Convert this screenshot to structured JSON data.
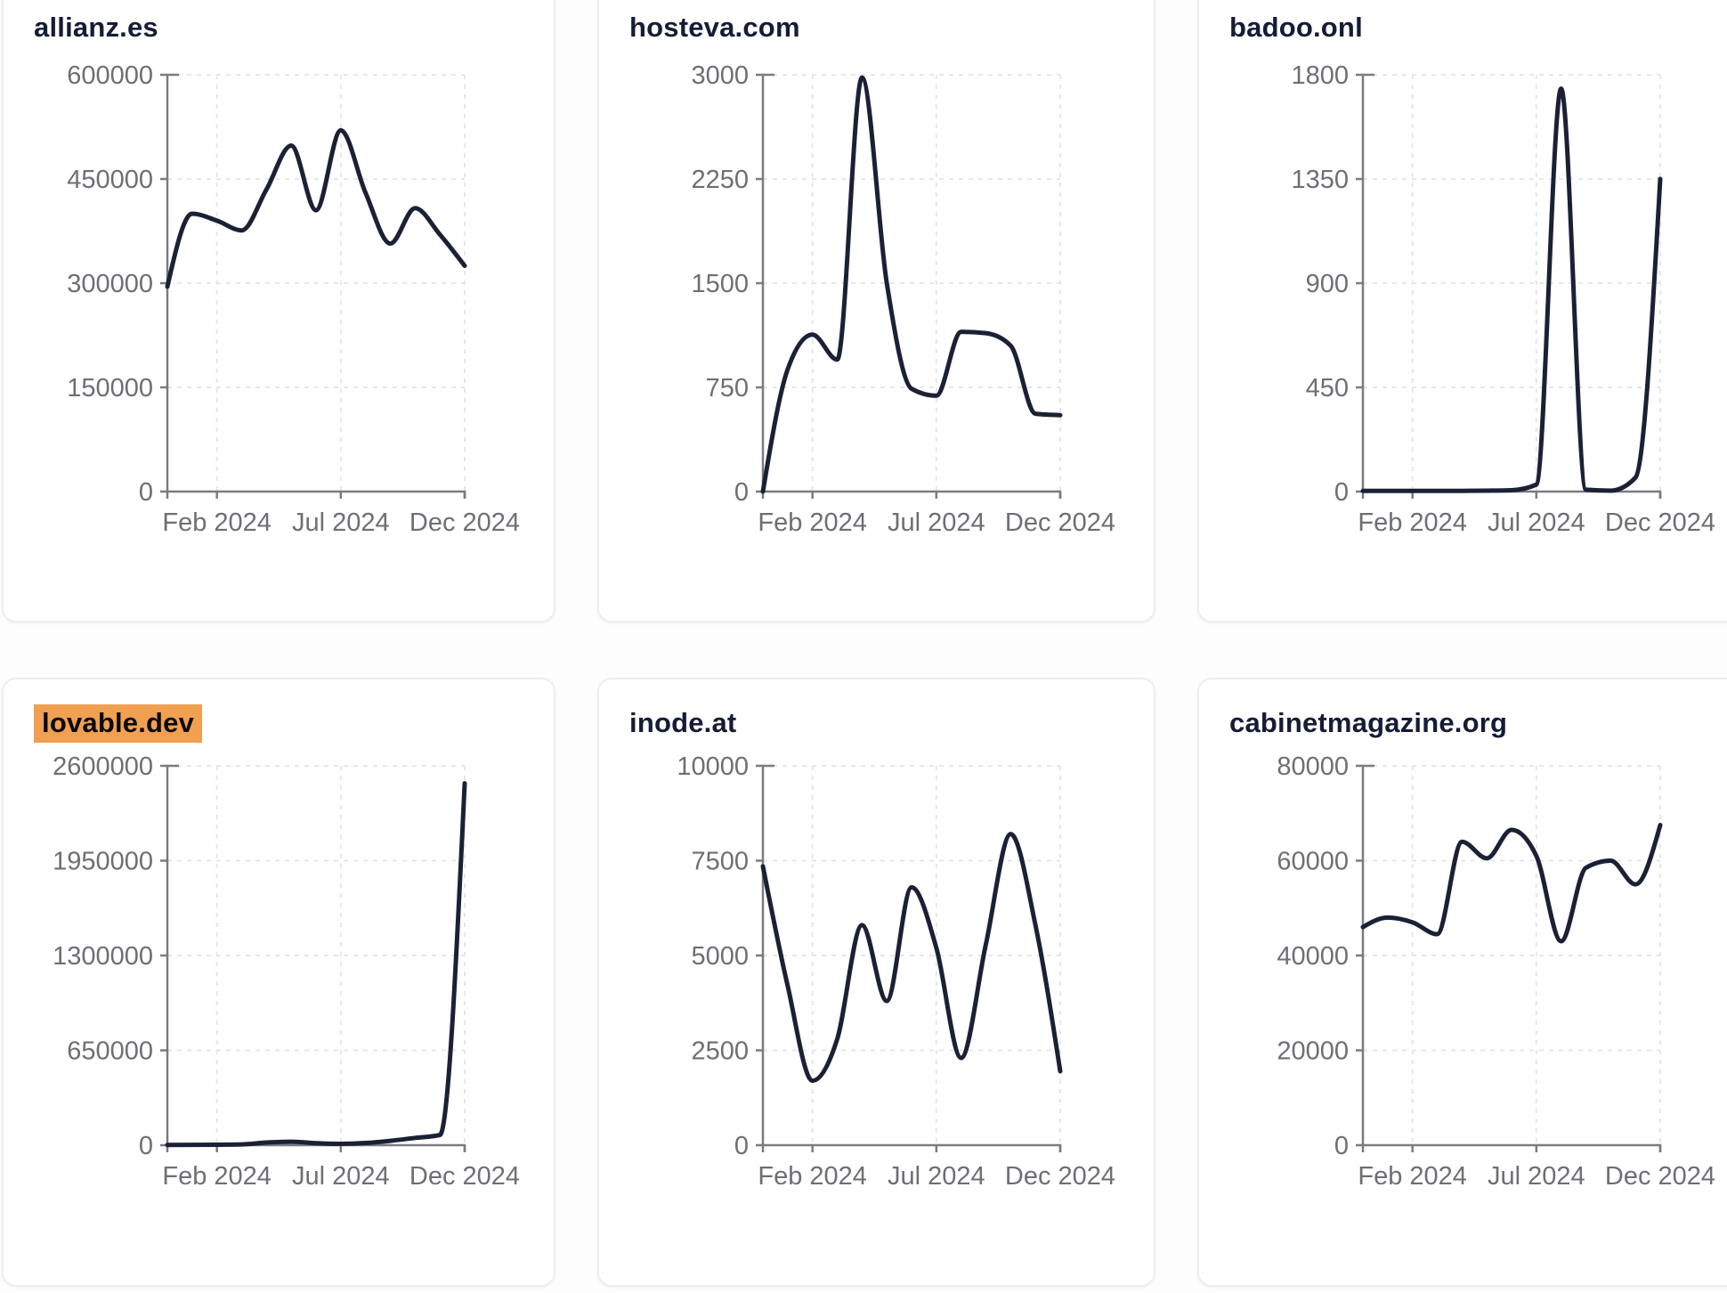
{
  "page": {
    "background": "#fdfdfe"
  },
  "style": {
    "card_background": "#ffffff",
    "card_border": "#eceef3",
    "title_color": "#141c36",
    "highlight_color": "#f0a050",
    "highlight_text_color": "#0a0a0a",
    "line_color": "#1b2135",
    "axis_color": "#7b7b81",
    "tick_label_color": "#6e6e74",
    "grid_color": "#e6e7ec"
  },
  "x_axis": {
    "tick_labels": [
      "Feb 2024",
      "Jul 2024",
      "Dec 2024"
    ],
    "tick_indices": [
      2,
      7,
      12
    ]
  },
  "chart_data": [
    {
      "type": "line",
      "title": "allianz.es",
      "highlighted": false,
      "x": [
        "Dec 2023",
        "Jan 2024",
        "Feb 2024",
        "Mar 2024",
        "Apr 2024",
        "May 2024",
        "Jun 2024",
        "Jul 2024",
        "Aug 2024",
        "Sep 2024",
        "Oct 2024",
        "Nov 2024",
        "Dec 2024"
      ],
      "values": [
        295000,
        400000,
        390000,
        376000,
        435000,
        498000,
        405000,
        520000,
        430000,
        357000,
        408000,
        370000,
        325000
      ],
      "y_ticks": [
        0,
        150000,
        300000,
        450000,
        600000
      ],
      "ylim": [
        0,
        600000
      ],
      "grid": "dashed",
      "legend": "none"
    },
    {
      "type": "line",
      "title": "hosteva.com",
      "highlighted": false,
      "x": [
        "Dec 2023",
        "Jan 2024",
        "Feb 2024",
        "Mar 2024",
        "Apr 2024",
        "May 2024",
        "Jun 2024",
        "Jul 2024",
        "Aug 2024",
        "Sep 2024",
        "Oct 2024",
        "Nov 2024",
        "Dec 2024"
      ],
      "values": [
        0,
        880,
        1130,
        950,
        2980,
        1500,
        740,
        690,
        1150,
        1140,
        1050,
        560,
        550
      ],
      "y_ticks": [
        0,
        750,
        1500,
        2250,
        3000
      ],
      "ylim": [
        0,
        3000
      ],
      "grid": "dashed",
      "legend": "none"
    },
    {
      "type": "line",
      "title": "badoo.onl",
      "highlighted": false,
      "x": [
        "Dec 2023",
        "Jan 2024",
        "Feb 2024",
        "Mar 2024",
        "Apr 2024",
        "May 2024",
        "Jun 2024",
        "Jul 2024",
        "Aug 2024",
        "Sep 2024",
        "Oct 2024",
        "Nov 2024",
        "Dec 2024"
      ],
      "values": [
        3,
        3,
        3,
        3,
        3,
        4,
        6,
        30,
        1740,
        8,
        4,
        60,
        1350
      ],
      "y_ticks": [
        0,
        450,
        900,
        1350,
        1800
      ],
      "ylim": [
        0,
        1800
      ],
      "grid": "dashed",
      "legend": "none"
    },
    {
      "type": "line",
      "title": "lovable.dev",
      "highlighted": true,
      "x": [
        "Dec 2023",
        "Jan 2024",
        "Feb 2024",
        "Mar 2024",
        "Apr 2024",
        "May 2024",
        "Jun 2024",
        "Jul 2024",
        "Aug 2024",
        "Sep 2024",
        "Oct 2024",
        "Nov 2024",
        "Dec 2024"
      ],
      "values": [
        1500,
        2000,
        3000,
        5000,
        18000,
        24000,
        14000,
        9000,
        15000,
        30000,
        50000,
        70000,
        2480000
      ],
      "y_ticks": [
        0,
        650000,
        1300000,
        1950000,
        2600000
      ],
      "ylim": [
        0,
        2600000
      ],
      "grid": "dashed",
      "legend": "none"
    },
    {
      "type": "line",
      "title": "inode.at",
      "highlighted": false,
      "x": [
        "Dec 2023",
        "Jan 2024",
        "Feb 2024",
        "Mar 2024",
        "Apr 2024",
        "May 2024",
        "Jun 2024",
        "Jul 2024",
        "Aug 2024",
        "Sep 2024",
        "Oct 2024",
        "Nov 2024",
        "Dec 2024"
      ],
      "values": [
        7350,
        4200,
        1700,
        2800,
        5800,
        3800,
        6800,
        5200,
        2300,
        5300,
        8200,
        5800,
        1950
      ],
      "y_ticks": [
        0,
        2500,
        5000,
        7500,
        10000
      ],
      "ylim": [
        0,
        10000
      ],
      "grid": "dashed",
      "legend": "none"
    },
    {
      "type": "line",
      "title": "cabinetmagazine.org",
      "highlighted": false,
      "x": [
        "Dec 2023",
        "Jan 2024",
        "Feb 2024",
        "Mar 2024",
        "Apr 2024",
        "May 2024",
        "Jun 2024",
        "Jul 2024",
        "Aug 2024",
        "Sep 2024",
        "Oct 2024",
        "Nov 2024",
        "Dec 2024"
      ],
      "values": [
        46000,
        48000,
        47000,
        44500,
        64000,
        60500,
        66500,
        61000,
        43000,
        58500,
        60000,
        55000,
        67500
      ],
      "y_ticks": [
        0,
        20000,
        40000,
        60000,
        80000
      ],
      "ylim": [
        0,
        80000
      ],
      "grid": "dashed",
      "legend": "none"
    }
  ]
}
